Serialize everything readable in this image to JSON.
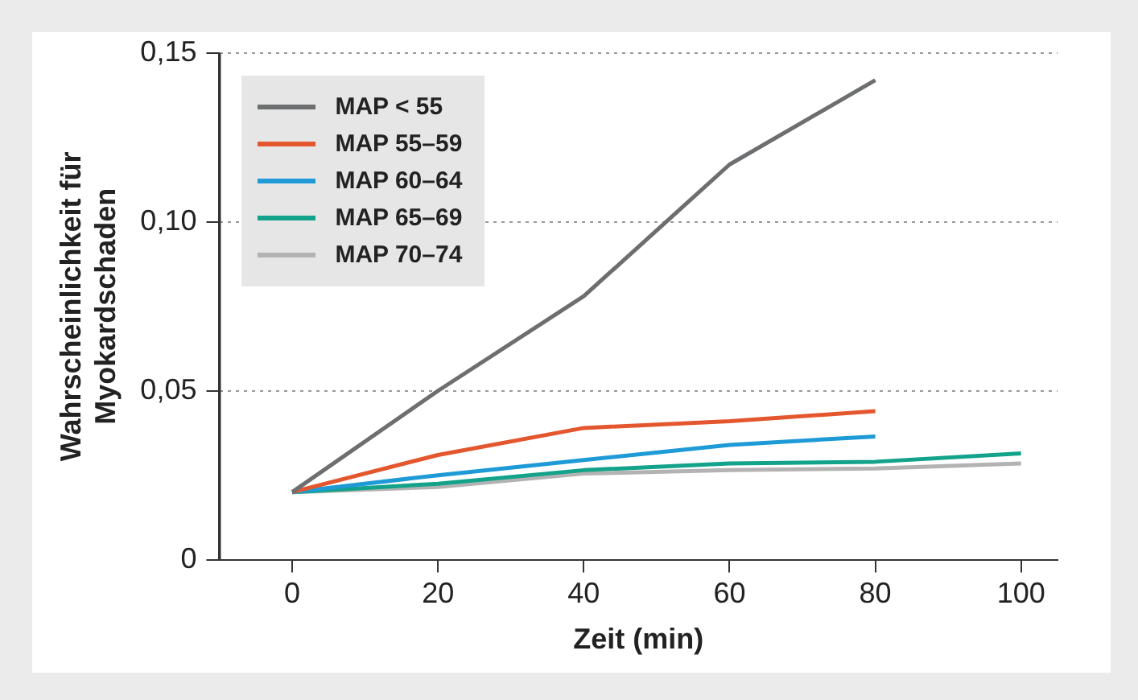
{
  "chart_data": {
    "type": "line",
    "xlabel": "Zeit (min)",
    "ylabel": "Wahrscheinlichkeit für Myokardschaden",
    "x": [
      0,
      20,
      40,
      60,
      80,
      100
    ],
    "series": [
      {
        "name": "MAP < 55",
        "color": "#6d6e70",
        "values": [
          0.02,
          0.05,
          0.078,
          0.117,
          0.142,
          null
        ]
      },
      {
        "name": "MAP 55–59",
        "color": "#e4572e",
        "values": [
          0.02,
          0.031,
          0.039,
          0.041,
          0.044,
          null
        ]
      },
      {
        "name": "MAP 60–64",
        "color": "#1e9ad6",
        "values": [
          0.02,
          0.025,
          0.0295,
          0.034,
          0.0365,
          null
        ]
      },
      {
        "name": "MAP 65–69",
        "color": "#13a38a",
        "values": [
          0.02,
          0.0225,
          0.0265,
          0.0285,
          0.029,
          0.0315
        ]
      },
      {
        "name": "MAP 70–74",
        "color": "#b3b3b3",
        "values": [
          0.02,
          0.0215,
          0.0255,
          0.0265,
          0.027,
          0.0285
        ]
      }
    ],
    "xlim": [
      -10,
      105
    ],
    "xticks": [
      0,
      20,
      40,
      60,
      80,
      100
    ],
    "ylim": [
      0,
      0.15
    ],
    "yticks": [
      {
        "value": 0,
        "label": "0"
      },
      {
        "value": 0.05,
        "label": "0,05"
      },
      {
        "value": 0.1,
        "label": "0,10"
      },
      {
        "value": 0.15,
        "label": "0,15"
      }
    ],
    "grid": "y",
    "legend": "top left",
    "marker": "none",
    "line_style": "solid"
  }
}
